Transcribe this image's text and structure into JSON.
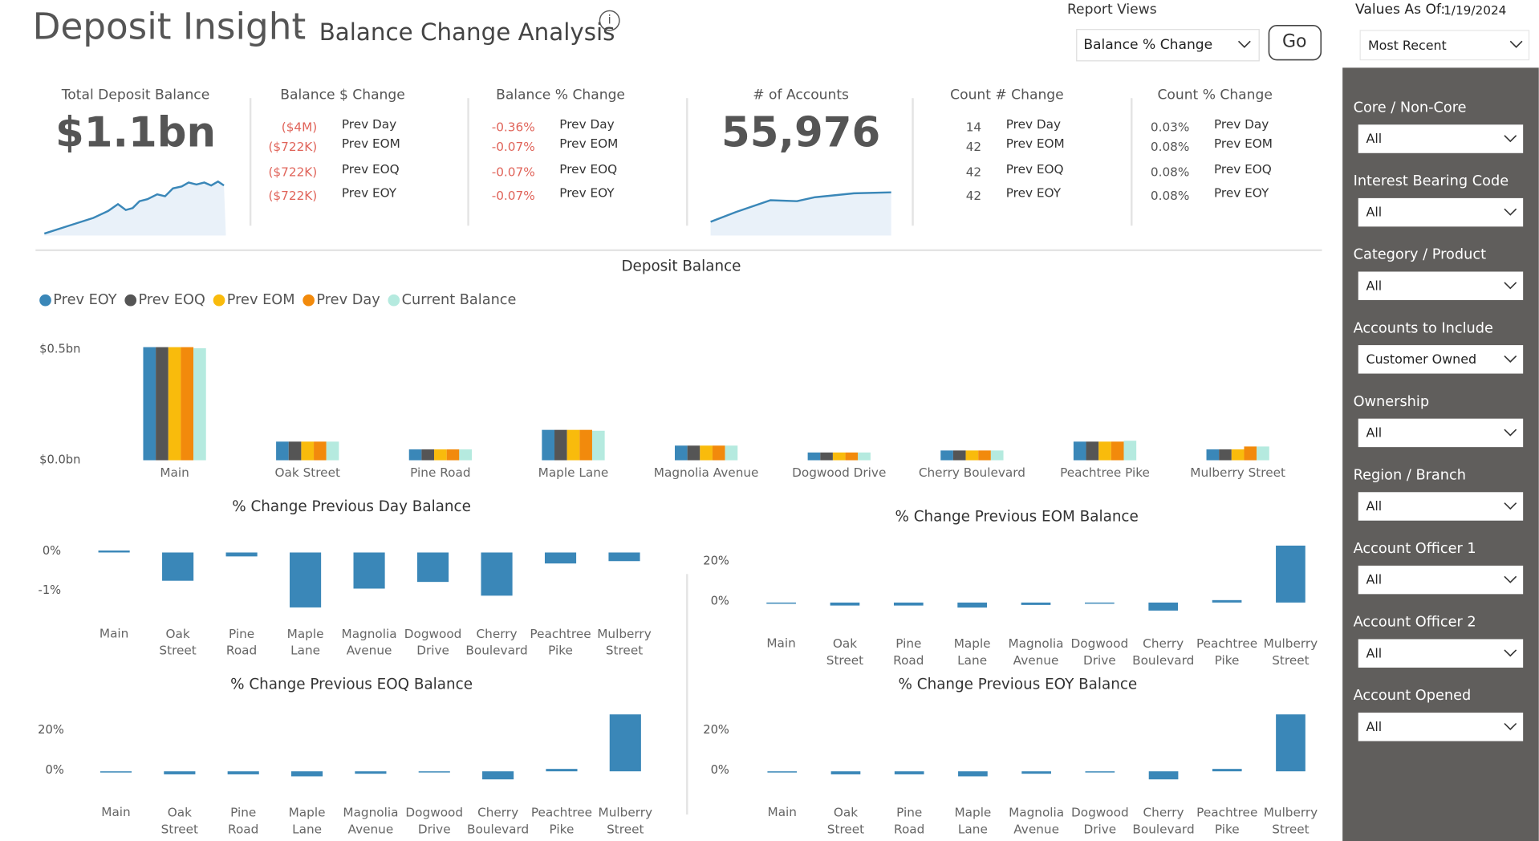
{
  "header": {
    "title": "Deposit Insight",
    "separator": "-",
    "subtitle": "Balance Change Analysis",
    "info": "i"
  },
  "controls": {
    "report_views_label": "Report Views",
    "report_view": "Balance % Change",
    "go": "Go",
    "values_as_of_label": "Values As Of:",
    "values_as_of": "1/19/2024",
    "values_mode": "Most Recent"
  },
  "kpis": [
    {
      "title": "Total Deposit Balance",
      "value": "$1.1bn"
    },
    {
      "title": "Balance $ Change",
      "color": "#e0645a",
      "rows": [
        {
          "value": "($4M)",
          "label": "Prev Day"
        },
        {
          "value": "($722K)",
          "label": "Prev EOM"
        },
        {
          "value": "($722K)",
          "label": "Prev EOQ"
        },
        {
          "value": "($722K)",
          "label": "Prev EOY"
        }
      ]
    },
    {
      "title": "Balance % Change",
      "color": "#e0645a",
      "rows": [
        {
          "value": "-0.36%",
          "label": "Prev Day"
        },
        {
          "value": "-0.07%",
          "label": "Prev EOM"
        },
        {
          "value": "-0.07%",
          "label": "Prev EOQ"
        },
        {
          "value": "-0.07%",
          "label": "Prev EOY"
        }
      ]
    },
    {
      "title": "# of Accounts",
      "value": "55,976"
    },
    {
      "title": "Count # Change",
      "color": "#555555",
      "rows": [
        {
          "value": "14",
          "label": "Prev Day"
        },
        {
          "value": "42",
          "label": "Prev EOM"
        },
        {
          "value": "42",
          "label": "Prev EOQ"
        },
        {
          "value": "42",
          "label": "Prev EOY"
        }
      ]
    },
    {
      "title": "Count % Change",
      "color": "#555555",
      "rows": [
        {
          "value": "0.03%",
          "label": "Prev Day"
        },
        {
          "value": "0.08%",
          "label": "Prev EOM"
        },
        {
          "value": "0.08%",
          "label": "Prev EOQ"
        },
        {
          "value": "0.08%",
          "label": "Prev EOY"
        }
      ]
    }
  ],
  "filters": [
    {
      "label": "Core / Non-Core",
      "value": "All"
    },
    {
      "label": "Interest Bearing Code",
      "value": "All"
    },
    {
      "label": "Category / Product",
      "value": "All"
    },
    {
      "label": "Accounts to Include",
      "value": "Customer Owned"
    },
    {
      "label": "Ownership",
      "value": "All"
    },
    {
      "label": "Region / Branch",
      "value": "All"
    },
    {
      "label": "Account Officer 1",
      "value": "All"
    },
    {
      "label": "Account Officer 2",
      "value": "All"
    },
    {
      "label": "Account Opened",
      "value": "All"
    }
  ],
  "chart_data": [
    {
      "type": "bar",
      "title": "Deposit Balance",
      "categories": [
        "Main",
        "Oak Street",
        "Pine Road",
        "Maple Lane",
        "Magnolia Avenue",
        "Dogwood Drive",
        "Cherry Boulevard",
        "Peachtree Pike",
        "Mulberry Street"
      ],
      "series": [
        {
          "name": "Prev EOY",
          "color": "#3a87b8",
          "values": [
            0.51,
            0.084,
            0.049,
            0.137,
            0.066,
            0.035,
            0.044,
            0.084,
            0.049
          ]
        },
        {
          "name": "Prev EOQ",
          "color": "#555555",
          "values": [
            0.51,
            0.084,
            0.049,
            0.137,
            0.066,
            0.035,
            0.044,
            0.084,
            0.049
          ]
        },
        {
          "name": "Prev EOM",
          "color": "#f9bb0c",
          "values": [
            0.51,
            0.084,
            0.049,
            0.137,
            0.066,
            0.035,
            0.044,
            0.084,
            0.049
          ]
        },
        {
          "name": "Prev Day",
          "color": "#f28a0c",
          "values": [
            0.51,
            0.084,
            0.049,
            0.137,
            0.066,
            0.035,
            0.044,
            0.084,
            0.062
          ]
        },
        {
          "name": "Current Balance",
          "color": "#b5eadf",
          "values": [
            0.505,
            0.084,
            0.049,
            0.133,
            0.066,
            0.035,
            0.044,
            0.088,
            0.062
          ]
        }
      ],
      "ylim": [
        0,
        0.55
      ],
      "yticks": [
        {
          "value": 0,
          "label": "$0.0bn"
        },
        {
          "value": 0.5,
          "label": "$0.5bn"
        }
      ],
      "legend": "top-left"
    },
    {
      "type": "bar",
      "title": "% Change Previous Day Balance",
      "categories": [
        "Main",
        "Oak Street",
        "Pine Road",
        "Maple Lane",
        "Magnolia Avenue",
        "Dogwood Drive",
        "Cherry Boulevard",
        "Peachtree Pike",
        "Mulberry Street"
      ],
      "values": [
        0.05,
        -0.72,
        -0.1,
        -1.4,
        -0.92,
        -0.75,
        -1.1,
        -0.28,
        -0.22
      ],
      "color": "#3a87b8",
      "ylim": [
        -1.6,
        0.4
      ],
      "yticks": [
        {
          "value": 0,
          "label": "0%"
        },
        {
          "value": -1,
          "label": "-1%"
        }
      ]
    },
    {
      "type": "bar",
      "title": "% Change Previous EOM Balance",
      "categories": [
        "Main",
        "Oak Street",
        "Pine Road",
        "Maple Lane",
        "Magnolia Avenue",
        "Dogwood Drive",
        "Cherry Boulevard",
        "Peachtree Pike",
        "Mulberry Street"
      ],
      "values": [
        -0.6,
        -1.5,
        -1.5,
        -2.5,
        -1.2,
        -0.3,
        -4,
        1.2,
        28.3
      ],
      "color": "#3a87b8",
      "ylim": [
        -8,
        30
      ],
      "yticks": [
        {
          "value": 0,
          "label": "0%"
        },
        {
          "value": 20,
          "label": "20%"
        }
      ]
    },
    {
      "type": "bar",
      "title": "% Change Previous EOQ Balance",
      "categories": [
        "Main",
        "Oak Street",
        "Pine Road",
        "Maple Lane",
        "Magnolia Avenue",
        "Dogwood Drive",
        "Cherry Boulevard",
        "Peachtree Pike",
        "Mulberry Street"
      ],
      "values": [
        -0.6,
        -1.5,
        -1.5,
        -2.5,
        -1.2,
        -0.3,
        -4,
        1.2,
        28.3
      ],
      "color": "#3a87b8",
      "ylim": [
        -8,
        30
      ],
      "yticks": [
        {
          "value": 0,
          "label": "0%"
        },
        {
          "value": 20,
          "label": "20%"
        }
      ]
    },
    {
      "type": "bar",
      "title": "% Change Previous EOY Balance",
      "categories": [
        "Main",
        "Oak Street",
        "Pine Road",
        "Maple Lane",
        "Magnolia Avenue",
        "Dogwood Drive",
        "Cherry Boulevard",
        "Peachtree Pike",
        "Mulberry Street"
      ],
      "values": [
        -0.6,
        -1.5,
        -1.5,
        -2.5,
        -1.2,
        -0.3,
        -4,
        1.2,
        28.3
      ],
      "color": "#3a87b8",
      "ylim": [
        -8,
        30
      ],
      "yticks": [
        {
          "value": 0,
          "label": "0%"
        },
        {
          "value": 20,
          "label": "20%"
        }
      ]
    }
  ]
}
